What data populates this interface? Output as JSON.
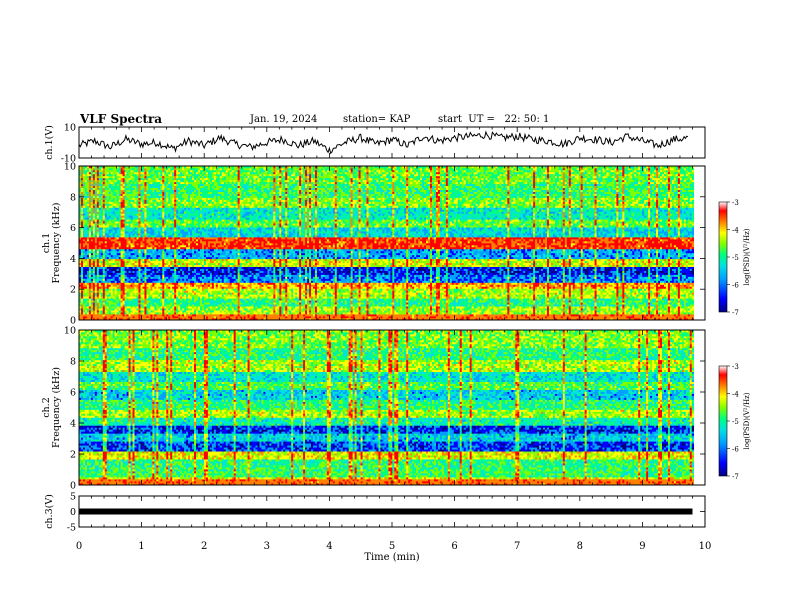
{
  "header": {
    "title": "VLF Spectra",
    "date": "Jan. 19, 2024",
    "station": "station= KAP",
    "start_ut": "start  UT =   22: 50: 1"
  },
  "chart_data": [
    {
      "type": "line",
      "title": "VLF Spectra",
      "ylabel": "ch.1(V)",
      "xlabel": "",
      "xlim": [
        0,
        10
      ],
      "ylim": [
        -10,
        10
      ],
      "yticks": [
        "10",
        "-10"
      ],
      "series": [
        {
          "x": [
            0,
            0.25,
            0.5,
            0.75,
            1.0,
            1.25,
            1.5,
            1.75,
            2.0,
            2.25,
            2.5,
            2.75,
            3.0,
            3.25,
            3.5,
            3.75,
            4.0,
            4.25,
            4.5,
            4.75,
            5.0,
            5.25,
            5.5,
            5.75,
            6.0,
            6.25,
            6.5,
            6.75,
            7.0,
            7.25,
            7.5,
            7.75,
            8.0,
            8.25,
            8.5,
            8.75,
            9.0,
            9.25,
            9.5,
            9.75
          ],
          "y": [
            -2,
            1,
            -3,
            2,
            -1,
            0,
            -4,
            1,
            -2,
            3,
            -1,
            -3,
            0,
            2,
            -2,
            1,
            -5,
            0,
            3,
            -1,
            2,
            -2,
            4,
            1,
            3,
            4,
            5,
            3,
            4,
            2,
            1,
            -1,
            3,
            2,
            0,
            4,
            1,
            -2,
            2,
            3
          ]
        }
      ]
    },
    {
      "type": "heatmap",
      "title": "",
      "ylabel": "ch.1 Frequency (kHz)",
      "xlabel": "",
      "xlim": [
        0,
        10
      ],
      "ylim": [
        0,
        10
      ],
      "yticks": [
        "0",
        "2",
        "4",
        "6",
        "8",
        "10"
      ],
      "colorbar": {
        "label": "log(PSD)(V²/Hz)",
        "range": [
          -7,
          -3
        ],
        "ticks": [
          "-3",
          "-4",
          "-5",
          "-6",
          "-7"
        ]
      },
      "bands": [
        {
          "f": 0.2,
          "level": -4.0
        },
        {
          "f": 0.6,
          "level": -4.5
        },
        {
          "f": 1.1,
          "level": -5.0
        },
        {
          "f": 1.8,
          "level": -4.4
        },
        {
          "f": 2.2,
          "level": -3.8
        },
        {
          "f": 2.7,
          "level": -6.0
        },
        {
          "f": 3.2,
          "level": -6.4
        },
        {
          "f": 3.7,
          "level": -4.3
        },
        {
          "f": 4.3,
          "level": -5.8
        },
        {
          "f": 5.0,
          "level": -3.4
        },
        {
          "f": 5.7,
          "level": -5.5
        },
        {
          "f": 6.3,
          "level": -4.7
        },
        {
          "f": 6.9,
          "level": -5.3
        },
        {
          "f": 7.6,
          "level": -4.6
        },
        {
          "f": 8.4,
          "level": -4.9
        },
        {
          "f": 9.3,
          "level": -4.7
        }
      ]
    },
    {
      "type": "heatmap",
      "title": "",
      "ylabel": "ch.2 Frequency (kHz)",
      "xlabel": "",
      "xlim": [
        0,
        10
      ],
      "ylim": [
        0,
        10
      ],
      "yticks": [
        "0",
        "2",
        "4",
        "6",
        "8",
        "10"
      ],
      "colorbar": {
        "label": "log(PSD)(V²/Hz)",
        "range": [
          -7,
          -3
        ],
        "ticks": [
          "-3",
          "-4",
          "-5",
          "-6",
          "-7"
        ]
      },
      "bands": [
        {
          "f": 0.2,
          "level": -4.2
        },
        {
          "f": 0.8,
          "level": -4.9
        },
        {
          "f": 1.4,
          "level": -5.0
        },
        {
          "f": 1.9,
          "level": -4.2
        },
        {
          "f": 2.5,
          "level": -6.2
        },
        {
          "f": 3.1,
          "level": -5.6
        },
        {
          "f": 3.6,
          "level": -6.3
        },
        {
          "f": 4.1,
          "level": -5.2
        },
        {
          "f": 4.6,
          "level": -4.4
        },
        {
          "f": 5.2,
          "level": -5.0
        },
        {
          "f": 5.8,
          "level": -5.6
        },
        {
          "f": 6.4,
          "level": -4.8
        },
        {
          "f": 7.0,
          "level": -5.4
        },
        {
          "f": 7.7,
          "level": -4.4
        },
        {
          "f": 8.5,
          "level": -5.0
        },
        {
          "f": 9.3,
          "level": -4.6
        }
      ]
    },
    {
      "type": "line",
      "title": "",
      "ylabel": "ch.3(V)",
      "xlabel": "Time  (min)",
      "xlim": [
        0,
        10
      ],
      "ylim": [
        -5,
        5
      ],
      "yticks": [
        "5",
        "0",
        "-5"
      ],
      "xticks": [
        "0",
        "1",
        "2",
        "3",
        "4",
        "5",
        "6",
        "7",
        "8",
        "9",
        "10"
      ],
      "series": [
        {
          "x": [
            0,
            9.8
          ],
          "y": [
            0,
            0
          ]
        }
      ]
    }
  ],
  "colors": {
    "colormap": [
      "#000080",
      "#0000ff",
      "#00a0ff",
      "#00e0e0",
      "#00ff80",
      "#80ff00",
      "#ffff00",
      "#ff8000",
      "#ff0000",
      "#ffffff"
    ],
    "line": "#000000"
  }
}
